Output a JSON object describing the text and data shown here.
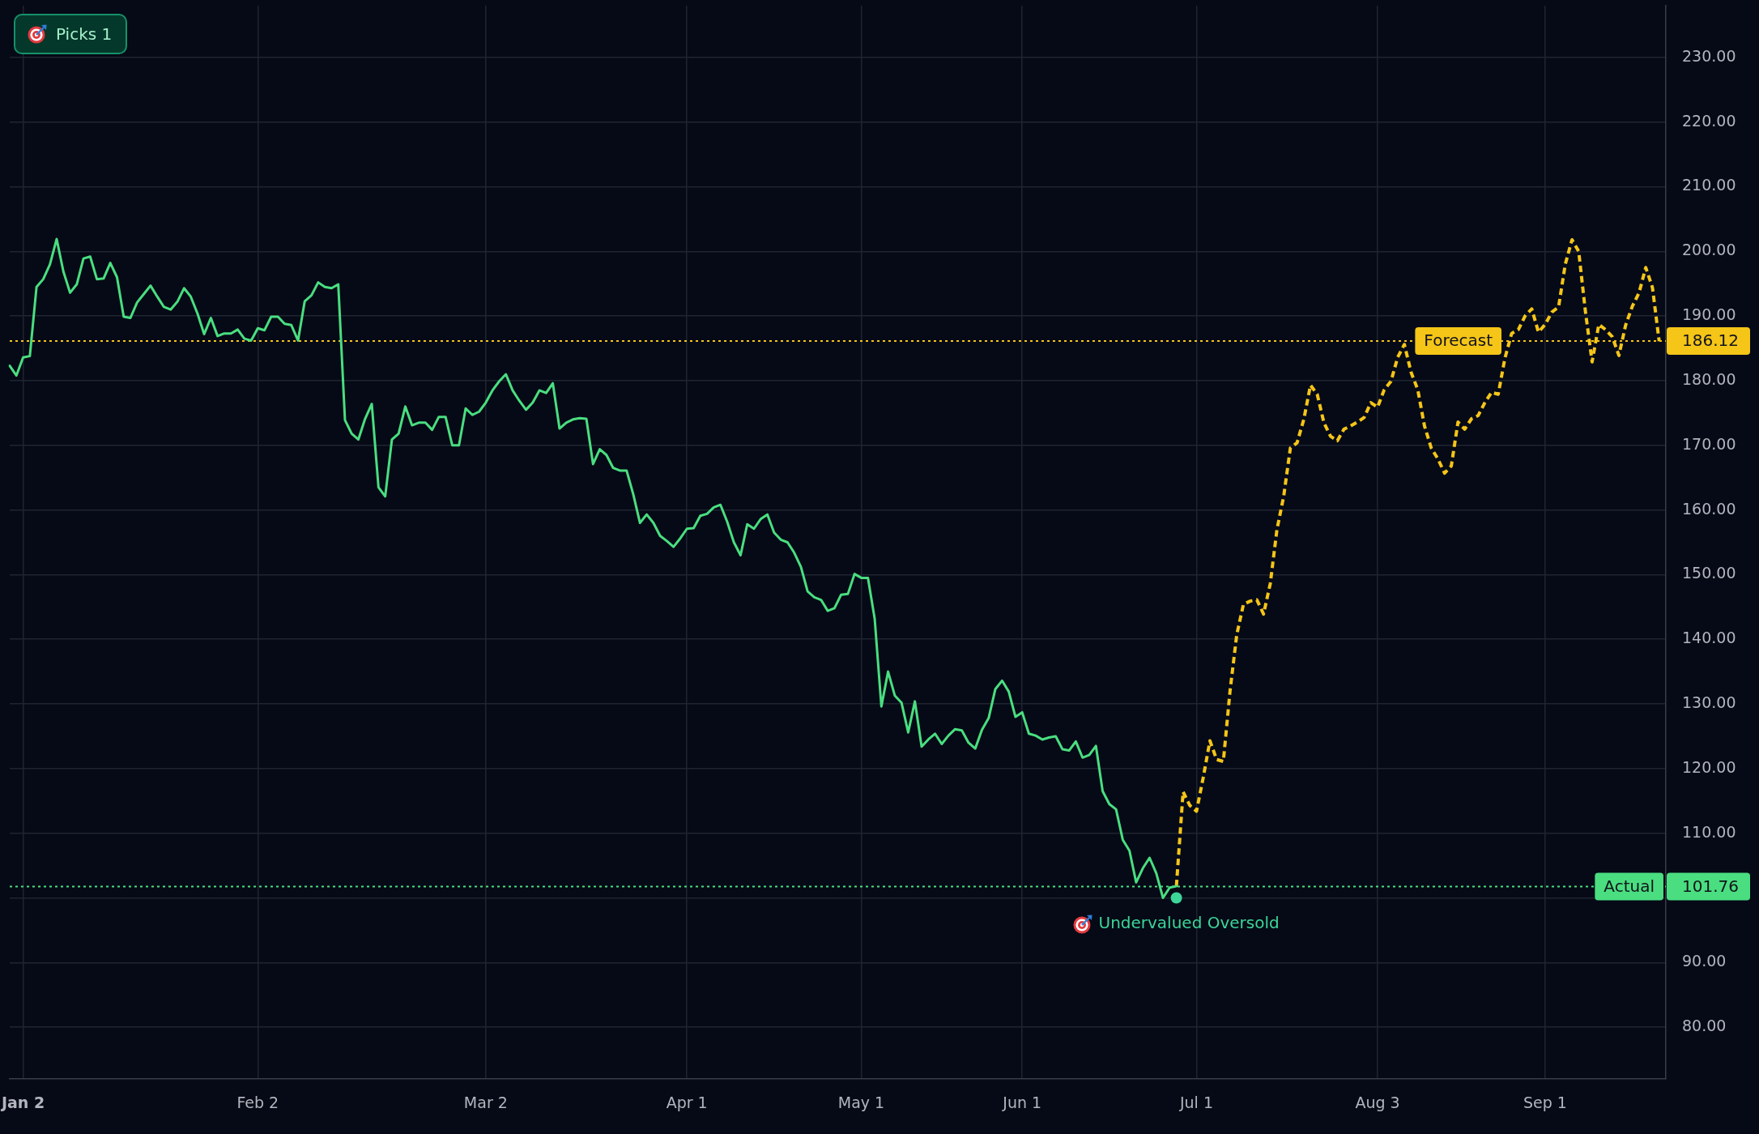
{
  "chart_data": {
    "type": "line",
    "annotations": [
      "Picks 1",
      "186.12",
      "101.76"
    ],
    "categories": [
      null,
      null,
      "Jan 2",
      null,
      null,
      null,
      null,
      null,
      null,
      null,
      null,
      null,
      null,
      null,
      null,
      null,
      null,
      null,
      null,
      null,
      null,
      null,
      null,
      null,
      null,
      null,
      null,
      null,
      null,
      null,
      null,
      null,
      null,
      null,
      null,
      null,
      null,
      "Feb 2",
      null,
      null,
      null,
      null,
      null,
      null,
      null,
      null,
      null,
      null,
      null,
      null,
      null,
      null,
      null,
      null,
      null,
      null,
      null,
      null,
      null,
      null,
      null,
      null,
      null,
      null,
      null,
      null,
      null,
      null,
      null,
      null,
      null,
      "Mar 2",
      null,
      null,
      null,
      null,
      null,
      null,
      null,
      null,
      null,
      null,
      null,
      null,
      null,
      null,
      null,
      null,
      null,
      null,
      null,
      null,
      null,
      null,
      null,
      null,
      null,
      null,
      null,
      null,
      null,
      "Apr 1",
      null,
      null,
      null,
      null,
      null,
      null,
      null,
      null,
      null,
      null,
      null,
      null,
      null,
      null,
      null,
      null,
      null,
      null,
      null,
      null,
      null,
      null,
      null,
      null,
      null,
      "May 1",
      null,
      null,
      null,
      null,
      null,
      null,
      null,
      null,
      null,
      null,
      null,
      null,
      null,
      null,
      null,
      null,
      null,
      null,
      null,
      null,
      null,
      null,
      null,
      "Jun 1",
      null,
      null,
      null,
      null,
      null,
      null,
      null,
      null,
      null,
      null,
      null,
      null,
      null,
      null,
      null,
      null,
      null,
      null,
      null,
      null,
      null,
      null,
      null,
      null,
      null,
      "Jul 1",
      null,
      null,
      null,
      null,
      null,
      null,
      null,
      null,
      null,
      null,
      null,
      null,
      null,
      null,
      null,
      null,
      null,
      null,
      null,
      null,
      null,
      null,
      null,
      null,
      null,
      null,
      "Aug 3",
      null,
      null,
      null,
      null,
      null,
      null,
      null,
      null,
      null,
      null,
      null,
      null,
      null,
      null,
      null,
      null,
      null,
      null,
      null,
      null,
      null,
      null,
      null,
      null,
      "Sep 1",
      null,
      null,
      null,
      null,
      null,
      null,
      null,
      null,
      null,
      null,
      null,
      null,
      null,
      null,
      null,
      null,
      null,
      null
    ],
    "ylim": [
      72,
      238
    ],
    "yticks": [
      {
        "value": 80,
        "label": "80.00"
      },
      {
        "value": 90,
        "label": "90.00"
      },
      {
        "value": 100,
        "label": null
      },
      {
        "value": 110,
        "label": "110.00"
      },
      {
        "value": 120,
        "label": "120.00"
      },
      {
        "value": 130,
        "label": "130.00"
      },
      {
        "value": 140,
        "label": "140.00"
      },
      {
        "value": 150,
        "label": "150.00"
      },
      {
        "value": 160,
        "label": "160.00"
      },
      {
        "value": 170,
        "label": "170.00"
      },
      {
        "value": 180,
        "label": "180.00"
      },
      {
        "value": 190,
        "label": "190.00"
      },
      {
        "value": 200,
        "label": "200.00"
      },
      {
        "value": 210,
        "label": "210.00"
      },
      {
        "value": 220,
        "label": "220.00"
      },
      {
        "value": 230,
        "label": "230.00"
      }
    ],
    "series": [
      {
        "color": "#4ade80",
        "line_style": "solid",
        "values": [
          182.3,
          180.8,
          183.6,
          183.8,
          194.5,
          195.7,
          198.0,
          201.9,
          196.9,
          193.6,
          194.9,
          198.9,
          199.2,
          195.7,
          195.8,
          198.2,
          196.0,
          189.9,
          189.7,
          192.1,
          193.4,
          194.7,
          193.0,
          191.4,
          191.0,
          192.2,
          194.3,
          193.0,
          190.4,
          187.2,
          189.7,
          186.9,
          187.3,
          187.3,
          187.9,
          186.5,
          186.2,
          188.1,
          187.8,
          189.9,
          189.9,
          188.8,
          188.6,
          186.2,
          192.3,
          193.2,
          195.2,
          194.5,
          194.3,
          194.9,
          173.9,
          171.8,
          170.9,
          174.1,
          176.4,
          163.5,
          162.1,
          170.9,
          171.8,
          176.0,
          173.1,
          173.5,
          173.5,
          172.4,
          174.4,
          174.4,
          170.0,
          170.0,
          175.7,
          174.7,
          175.2,
          176.6,
          178.5,
          179.9,
          181.0,
          178.5,
          176.9,
          175.5,
          176.6,
          178.5,
          178.1,
          179.6,
          172.6,
          173.5,
          174.0,
          174.2,
          174.1,
          167.1,
          169.4,
          168.5,
          166.5,
          166.1,
          166.1,
          162.4,
          158.0,
          159.3,
          158.0,
          156.0,
          155.2,
          154.3,
          155.6,
          157.1,
          157.2,
          159.1,
          159.4,
          160.4,
          160.8,
          158.2,
          155.0,
          153.0,
          157.8,
          157.1,
          158.6,
          159.3,
          156.5,
          155.4,
          155.0,
          153.4,
          151.2,
          147.4,
          146.5,
          146.1,
          144.4,
          144.8,
          146.9,
          147.0,
          150.1,
          149.5,
          149.5,
          143.2,
          129.6,
          135.0,
          131.3,
          130.2,
          125.6,
          130.4,
          123.4,
          124.5,
          125.4,
          123.8,
          125.1,
          126.1,
          125.9,
          124.0,
          123.1,
          126.0,
          127.8,
          132.3,
          133.6,
          131.9,
          128.0,
          128.7,
          125.4,
          125.1,
          124.5,
          124.8,
          125.0,
          123.0,
          122.8,
          124.2,
          121.7,
          122.1,
          123.5,
          116.5,
          114.5,
          113.7,
          109.0,
          107.3,
          102.4,
          104.6,
          106.2,
          103.8,
          100.0,
          101.6,
          101.8,
          null,
          null,
          null,
          null,
          null,
          null,
          null,
          null,
          null,
          null,
          null,
          null,
          null,
          null,
          null,
          null,
          null,
          null,
          null,
          null,
          null,
          null,
          null,
          null,
          null,
          null,
          null,
          null,
          null,
          null,
          null,
          null,
          null,
          null,
          null,
          null,
          null,
          null,
          null,
          null,
          null,
          null,
          null,
          null,
          null,
          null,
          null,
          null,
          null,
          null,
          null,
          null,
          null,
          null,
          null,
          null,
          null,
          null,
          null,
          null,
          null,
          null,
          null,
          null,
          null,
          null,
          null,
          null,
          null,
          null,
          null,
          null,
          null
        ]
      },
      {
        "color": "#f5c518",
        "line_style": "dashed",
        "values": [
          null,
          null,
          null,
          null,
          null,
          null,
          null,
          null,
          null,
          null,
          null,
          null,
          null,
          null,
          null,
          null,
          null,
          null,
          null,
          null,
          null,
          null,
          null,
          null,
          null,
          null,
          null,
          null,
          null,
          null,
          null,
          null,
          null,
          null,
          null,
          null,
          null,
          null,
          null,
          null,
          null,
          null,
          null,
          null,
          null,
          null,
          null,
          null,
          null,
          null,
          null,
          null,
          null,
          null,
          null,
          null,
          null,
          null,
          null,
          null,
          null,
          null,
          null,
          null,
          null,
          null,
          null,
          null,
          null,
          null,
          null,
          null,
          null,
          null,
          null,
          null,
          null,
          null,
          null,
          null,
          null,
          null,
          null,
          null,
          null,
          null,
          null,
          null,
          null,
          null,
          null,
          null,
          null,
          null,
          null,
          null,
          null,
          null,
          null,
          null,
          null,
          null,
          null,
          null,
          null,
          null,
          null,
          null,
          null,
          null,
          null,
          null,
          null,
          null,
          null,
          null,
          null,
          null,
          null,
          null,
          null,
          null,
          null,
          null,
          null,
          null,
          null,
          null,
          null,
          null,
          null,
          null,
          null,
          null,
          null,
          null,
          null,
          null,
          null,
          null,
          null,
          null,
          null,
          null,
          null,
          null,
          null,
          null,
          null,
          null,
          null,
          null,
          null,
          null,
          null,
          null,
          null,
          null,
          null,
          null,
          null,
          null,
          null,
          null,
          null,
          null,
          null,
          null,
          null,
          null,
          null,
          null,
          null,
          null,
          101.8,
          116.4,
          114.3,
          113.4,
          118.6,
          124.3,
          121.4,
          121.1,
          132.0,
          140.7,
          145.4,
          145.9,
          146.1,
          143.9,
          148.6,
          157.0,
          162.1,
          169.6,
          170.4,
          174.0,
          179.3,
          177.9,
          173.5,
          171.4,
          170.7,
          172.5,
          173.0,
          173.6,
          174.3,
          176.6,
          175.9,
          178.6,
          179.9,
          183.6,
          185.6,
          181.3,
          178.6,
          173.0,
          169.6,
          167.9,
          165.7,
          166.8,
          173.6,
          172.5,
          174.1,
          174.6,
          176.6,
          178.2,
          177.9,
          183.5,
          187.3,
          187.9,
          190.0,
          191.1,
          187.5,
          188.7,
          190.6,
          191.4,
          198.0,
          201.8,
          200.0,
          190.7,
          182.9,
          188.7,
          187.9,
          186.8,
          183.9,
          188.6,
          191.5,
          193.6,
          197.5,
          194.4,
          186.1,
          null
        ]
      },
      {
        "name": "Undervalued Oversold",
        "type": "scatter",
        "marker": "circle",
        "color": "#3dd598",
        "values": [
          null,
          null,
          null,
          null,
          null,
          null,
          null,
          null,
          null,
          null,
          null,
          null,
          null,
          null,
          null,
          null,
          null,
          null,
          null,
          null,
          null,
          null,
          null,
          null,
          null,
          null,
          null,
          null,
          null,
          null,
          null,
          null,
          null,
          null,
          null,
          null,
          null,
          null,
          null,
          null,
          null,
          null,
          null,
          null,
          null,
          null,
          null,
          null,
          null,
          null,
          null,
          null,
          null,
          null,
          null,
          null,
          null,
          null,
          null,
          null,
          null,
          null,
          null,
          null,
          null,
          null,
          null,
          null,
          null,
          null,
          null,
          null,
          null,
          null,
          null,
          null,
          null,
          null,
          null,
          null,
          null,
          null,
          null,
          null,
          null,
          null,
          null,
          null,
          null,
          null,
          null,
          null,
          null,
          null,
          null,
          null,
          null,
          null,
          null,
          null,
          null,
          null,
          null,
          null,
          null,
          null,
          null,
          null,
          null,
          null,
          null,
          null,
          null,
          null,
          null,
          null,
          null,
          null,
          null,
          null,
          null,
          null,
          null,
          null,
          null,
          null,
          null,
          null,
          null,
          null,
          null,
          null,
          null,
          null,
          null,
          null,
          null,
          null,
          null,
          null,
          null,
          null,
          null,
          null,
          null,
          null,
          null,
          null,
          null,
          null,
          null,
          null,
          null,
          null,
          null,
          null,
          null,
          null,
          null,
          null,
          null,
          null,
          null,
          null,
          null,
          null,
          null,
          null,
          null,
          null,
          null,
          null,
          null,
          null,
          100.0,
          null,
          null,
          null,
          null,
          null,
          null,
          null,
          null,
          null,
          null,
          null,
          null,
          null,
          null,
          null,
          null,
          null,
          null,
          null,
          null,
          null,
          null,
          null,
          null,
          null,
          null,
          null,
          null,
          null,
          null,
          null,
          null,
          null,
          null,
          null,
          null,
          null,
          null,
          null,
          null,
          null,
          null,
          null,
          null,
          null,
          null,
          null,
          null,
          null,
          null,
          null,
          null,
          null,
          null,
          null,
          null,
          null,
          null,
          null,
          null,
          null,
          null,
          null,
          null,
          null,
          null,
          null,
          null,
          null,
          null,
          null,
          null,
          null
        ]
      }
    ],
    "ref_lines": [
      {
        "axis": "y",
        "value": 186.12,
        "label": "Forecast",
        "color": "#f5c518",
        "line_style": "dotted"
      },
      {
        "axis": "y",
        "value": 101.76,
        "label": "Actual",
        "color": "#4ade80",
        "line_style": "dotted"
      }
    ],
    "grid": true,
    "legend": false,
    "marker": "none"
  }
}
